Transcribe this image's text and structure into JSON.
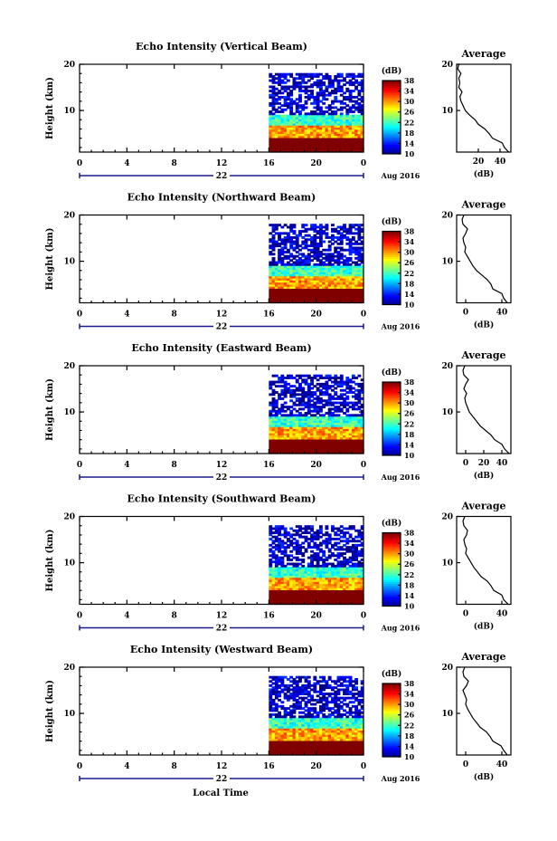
{
  "x_axis_label": "Local Time",
  "chart_data": [
    {
      "type": "heatmap",
      "title": "Echo Intensity (Vertical Beam)",
      "ylabel": "Height (km)",
      "xlabel": "Local Time",
      "x_ticks": [
        "0",
        "4",
        "8",
        "12",
        "16",
        "20",
        "0"
      ],
      "y_ticks": [
        "20",
        "10"
      ],
      "xlim": [
        0,
        24
      ],
      "ylim": [
        1,
        20
      ],
      "date_label": "22",
      "month_year": "Aug 2016",
      "data_start_hour": 16,
      "colorbar": {
        "label": "(dB)",
        "ticks": [
          "38",
          "34",
          "30",
          "26",
          "22",
          "18",
          "14",
          "10"
        ],
        "range": [
          10,
          38
        ]
      },
      "layers": [
        {
          "from_km": 1,
          "to_km": 4,
          "dB": 38
        },
        {
          "from_km": 4,
          "to_km": 6.5,
          "dB": 30
        },
        {
          "from_km": 6.5,
          "to_km": 9,
          "dB": 22
        },
        {
          "from_km": 9,
          "to_km": 18,
          "dB": 12
        }
      ],
      "profile": {
        "title": "Average",
        "xlabel": "(dB)",
        "x_ticks": [
          "20",
          "40"
        ],
        "y_ticks": [
          "20",
          "10"
        ],
        "xlim": [
          0,
          50
        ],
        "ylim": [
          1,
          20
        ],
        "series": [
          {
            "height_km": [
              1,
              2,
              3,
              4,
              5,
              6,
              7,
              8,
              9,
              10,
              11,
              12,
              13,
              14,
              15,
              16,
              17,
              18,
              19,
              20
            ],
            "dB": [
              48,
              44,
              42,
              33,
              30,
              26,
              20,
              17,
              12,
              8,
              6,
              4,
              3,
              5,
              2,
              3,
              2,
              4,
              1,
              2
            ]
          }
        ]
      }
    },
    {
      "type": "heatmap",
      "title": "Echo Intensity (Northward Beam)",
      "ylabel": "Height (km)",
      "xlabel": "Local Time",
      "x_ticks": [
        "0",
        "4",
        "8",
        "12",
        "16",
        "20",
        "0"
      ],
      "y_ticks": [
        "20",
        "10"
      ],
      "xlim": [
        0,
        24
      ],
      "ylim": [
        1,
        20
      ],
      "date_label": "22",
      "month_year": "Aug 2016",
      "data_start_hour": 16,
      "colorbar": {
        "label": "(dB)",
        "ticks": [
          "38",
          "34",
          "30",
          "26",
          "22",
          "18",
          "14",
          "10"
        ],
        "range": [
          10,
          38
        ]
      },
      "layers": [
        {
          "from_km": 1,
          "to_km": 4,
          "dB": 38
        },
        {
          "from_km": 4,
          "to_km": 6.5,
          "dB": 30
        },
        {
          "from_km": 6.5,
          "to_km": 9,
          "dB": 22
        },
        {
          "from_km": 9,
          "to_km": 18,
          "dB": 12
        }
      ],
      "profile": {
        "title": "Average",
        "xlabel": "(dB)",
        "x_ticks": [
          "0",
          "40"
        ],
        "y_ticks": [
          "20",
          "10"
        ],
        "xlim": [
          -10,
          50
        ],
        "ylim": [
          1,
          20
        ],
        "series": [
          {
            "height_km": [
              1,
              2,
              3,
              4,
              5,
              6,
              7,
              8,
              9,
              10,
              11,
              12,
              13,
              14,
              15,
              16,
              17,
              18,
              19,
              20
            ],
            "dB": [
              46,
              42,
              40,
              30,
              28,
              24,
              18,
              12,
              8,
              5,
              2,
              -1,
              0,
              -2,
              -3,
              0,
              2,
              -3,
              -4,
              -2
            ]
          }
        ]
      }
    },
    {
      "type": "heatmap",
      "title": "Echo Intensity (Eastward Beam)",
      "ylabel": "Height (km)",
      "xlabel": "Local Time",
      "x_ticks": [
        "0",
        "4",
        "8",
        "12",
        "16",
        "20",
        "0"
      ],
      "y_ticks": [
        "20",
        "10"
      ],
      "xlim": [
        0,
        24
      ],
      "ylim": [
        1,
        20
      ],
      "date_label": "22",
      "month_year": "Aug 2016",
      "data_start_hour": 16,
      "colorbar": {
        "label": "(dB)",
        "ticks": [
          "38",
          "34",
          "30",
          "26",
          "22",
          "18",
          "14",
          "10"
        ],
        "range": [
          10,
          38
        ]
      },
      "layers": [
        {
          "from_km": 1,
          "to_km": 4,
          "dB": 38
        },
        {
          "from_km": 4,
          "to_km": 6.5,
          "dB": 30
        },
        {
          "from_km": 6.5,
          "to_km": 9,
          "dB": 22
        },
        {
          "from_km": 9,
          "to_km": 18,
          "dB": 12
        }
      ],
      "profile": {
        "title": "Average",
        "xlabel": "(dB)",
        "x_ticks": [
          "0",
          "20",
          "40"
        ],
        "y_ticks": [
          "20",
          "10"
        ],
        "xlim": [
          -10,
          50
        ],
        "ylim": [
          1,
          20
        ],
        "series": [
          {
            "height_km": [
              1,
              2,
              3,
              4,
              5,
              6,
              7,
              8,
              9,
              10,
              11,
              12,
              13,
              14,
              15,
              16,
              17,
              18,
              19,
              20
            ],
            "dB": [
              48,
              43,
              40,
              32,
              28,
              22,
              16,
              12,
              8,
              4,
              2,
              0,
              -1,
              1,
              -2,
              0,
              3,
              -2,
              -3,
              -1
            ]
          }
        ]
      }
    },
    {
      "type": "heatmap",
      "title": "Echo Intensity (Southward Beam)",
      "ylabel": "Height (km)",
      "xlabel": "Local Time",
      "x_ticks": [
        "0",
        "4",
        "8",
        "12",
        "16",
        "20",
        "0"
      ],
      "y_ticks": [
        "20",
        "10"
      ],
      "xlim": [
        0,
        24
      ],
      "ylim": [
        1,
        20
      ],
      "date_label": "22",
      "month_year": "Aug 2016",
      "data_start_hour": 16,
      "colorbar": {
        "label": "(dB)",
        "ticks": [
          "38",
          "34",
          "30",
          "26",
          "22",
          "18",
          "14",
          "10"
        ],
        "range": [
          10,
          38
        ]
      },
      "layers": [
        {
          "from_km": 1,
          "to_km": 4,
          "dB": 38
        },
        {
          "from_km": 4,
          "to_km": 6.5,
          "dB": 30
        },
        {
          "from_km": 6.5,
          "to_km": 9,
          "dB": 22
        },
        {
          "from_km": 9,
          "to_km": 18,
          "dB": 12
        }
      ],
      "profile": {
        "title": "Average",
        "xlabel": "(dB)",
        "x_ticks": [
          "0",
          "40"
        ],
        "y_ticks": [
          "20",
          "10"
        ],
        "xlim": [
          -10,
          50
        ],
        "ylim": [
          1,
          20
        ],
        "series": [
          {
            "height_km": [
              1,
              2,
              3,
              4,
              5,
              6,
              7,
              8,
              9,
              10,
              11,
              12,
              13,
              14,
              15,
              16,
              17,
              18,
              19,
              20
            ],
            "dB": [
              47,
              42,
              40,
              31,
              28,
              24,
              17,
              13,
              9,
              6,
              3,
              0,
              1,
              -1,
              -2,
              1,
              2,
              -2,
              -3,
              -1
            ]
          }
        ]
      }
    },
    {
      "type": "heatmap",
      "title": "Echo Intensity (Westward Beam)",
      "ylabel": "Height (km)",
      "xlabel": "Local Time",
      "x_ticks": [
        "0",
        "4",
        "8",
        "12",
        "16",
        "20",
        "0"
      ],
      "y_ticks": [
        "20",
        "10"
      ],
      "xlim": [
        0,
        24
      ],
      "ylim": [
        1,
        20
      ],
      "date_label": "22",
      "month_year": "Aug 2016",
      "data_start_hour": 16,
      "colorbar": {
        "label": "(dB)",
        "ticks": [
          "38",
          "34",
          "30",
          "26",
          "22",
          "18",
          "14",
          "10"
        ],
        "range": [
          10,
          38
        ]
      },
      "layers": [
        {
          "from_km": 1,
          "to_km": 4,
          "dB": 38
        },
        {
          "from_km": 4,
          "to_km": 6.5,
          "dB": 30
        },
        {
          "from_km": 6.5,
          "to_km": 9,
          "dB": 22
        },
        {
          "from_km": 9,
          "to_km": 18,
          "dB": 12
        }
      ],
      "profile": {
        "title": "Average",
        "xlabel": "(dB)",
        "x_ticks": [
          "0",
          "40"
        ],
        "y_ticks": [
          "20",
          "10"
        ],
        "xlim": [
          -10,
          50
        ],
        "ylim": [
          1,
          20
        ],
        "series": [
          {
            "height_km": [
              1,
              2,
              3,
              4,
              5,
              6,
              7,
              8,
              9,
              10,
              11,
              12,
              13,
              14,
              15,
              16,
              17,
              18,
              19,
              20
            ],
            "dB": [
              46,
              42,
              39,
              30,
              27,
              23,
              16,
              12,
              8,
              5,
              2,
              0,
              1,
              -1,
              -3,
              1,
              3,
              -2,
              -3,
              -1
            ]
          }
        ]
      }
    }
  ]
}
